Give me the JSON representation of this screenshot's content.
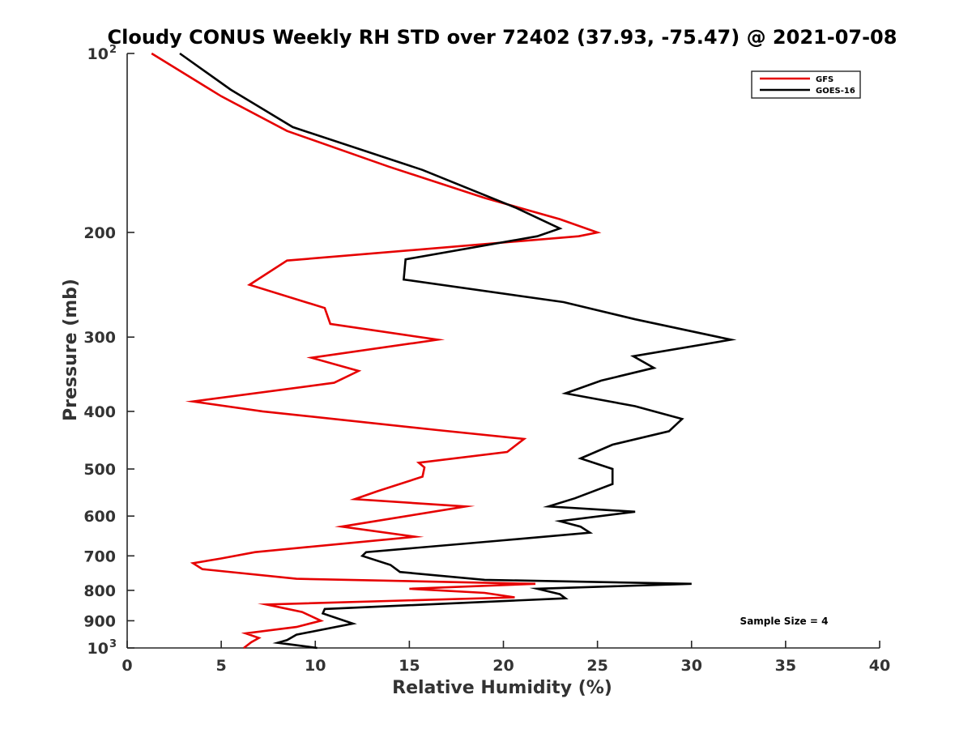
{
  "chart_data": {
    "type": "line",
    "title": "Cloudy CONUS Weekly RH STD over 72402 (37.93, -75.47) @ 2021-07-08",
    "xlabel": "Relative Humidity (%)",
    "ylabel": "Pressure (mb)",
    "xlim": [
      0,
      40
    ],
    "ylim": [
      100,
      1000
    ],
    "y_scale": "log",
    "y_reversed": true,
    "grid": false,
    "legend_position": "top-right",
    "x_ticks": [
      "0",
      "5",
      "10",
      "15",
      "20",
      "25",
      "30",
      "35",
      "40"
    ],
    "x_tick_values": [
      0,
      5,
      10,
      15,
      20,
      25,
      30,
      35,
      40
    ],
    "y_ticks": [
      {
        "value": 100,
        "label": "10",
        "sup": "2"
      },
      {
        "value": 200,
        "label": "200",
        "sup": ""
      },
      {
        "value": 300,
        "label": "300",
        "sup": ""
      },
      {
        "value": 400,
        "label": "400",
        "sup": ""
      },
      {
        "value": 500,
        "label": "500",
        "sup": ""
      },
      {
        "value": 600,
        "label": "600",
        "sup": ""
      },
      {
        "value": 700,
        "label": "700",
        "sup": ""
      },
      {
        "value": 800,
        "label": "800",
        "sup": ""
      },
      {
        "value": 900,
        "label": "900",
        "sup": ""
      },
      {
        "value": 1000,
        "label": "10",
        "sup": "3"
      }
    ],
    "annotation": "Sample Size = 4",
    "series": [
      {
        "name": "GFS",
        "color": "#e60000",
        "points": [
          [
            1.3,
            100
          ],
          [
            5.0,
            118
          ],
          [
            8.5,
            135
          ],
          [
            13.9,
            155
          ],
          [
            19.0,
            175
          ],
          [
            23.0,
            190
          ],
          [
            25.0,
            200
          ],
          [
            24.0,
            203
          ],
          [
            8.5,
            223
          ],
          [
            6.5,
            245
          ],
          [
            10.5,
            268
          ],
          [
            10.8,
            285
          ],
          [
            16.5,
            303
          ],
          [
            9.8,
            325
          ],
          [
            12.3,
            342
          ],
          [
            11.0,
            358
          ],
          [
            3.5,
            385
          ],
          [
            7.2,
            400
          ],
          [
            16.5,
            430
          ],
          [
            21.1,
            445
          ],
          [
            20.2,
            468
          ],
          [
            15.5,
            488
          ],
          [
            15.8,
            497
          ],
          [
            15.7,
            515
          ],
          [
            13.3,
            545
          ],
          [
            12.1,
            562
          ],
          [
            18.0,
            578
          ],
          [
            11.4,
            625
          ],
          [
            15.3,
            650
          ],
          [
            6.8,
            690
          ],
          [
            5.0,
            707
          ],
          [
            3.5,
            720
          ],
          [
            4.0,
            737
          ],
          [
            9.0,
            765
          ],
          [
            21.7,
            780
          ],
          [
            15.0,
            795
          ],
          [
            19.0,
            808
          ],
          [
            20.6,
            822
          ],
          [
            7.4,
            845
          ],
          [
            9.3,
            870
          ],
          [
            10.3,
            900
          ],
          [
            9.0,
            922
          ],
          [
            6.3,
            945
          ],
          [
            7.0,
            962
          ],
          [
            6.6,
            978
          ],
          [
            6.2,
            1000
          ]
        ]
      },
      {
        "name": "GOES-16",
        "color": "#000000",
        "points": [
          [
            2.8,
            100
          ],
          [
            5.5,
            115
          ],
          [
            8.8,
            133
          ],
          [
            15.7,
            157
          ],
          [
            20.7,
            182
          ],
          [
            23.0,
            197
          ],
          [
            21.8,
            203
          ],
          [
            14.8,
            222
          ],
          [
            14.7,
            240
          ],
          [
            23.2,
            262
          ],
          [
            27.0,
            280
          ],
          [
            32.1,
            303
          ],
          [
            26.9,
            323
          ],
          [
            28.0,
            338
          ],
          [
            25.2,
            355
          ],
          [
            23.3,
            373
          ],
          [
            27.0,
            392
          ],
          [
            29.5,
            412
          ],
          [
            28.8,
            432
          ],
          [
            25.8,
            455
          ],
          [
            24.1,
            480
          ],
          [
            25.8,
            500
          ],
          [
            25.8,
            530
          ],
          [
            23.8,
            560
          ],
          [
            22.4,
            578
          ],
          [
            27.0,
            590
          ],
          [
            23.0,
            612
          ],
          [
            24.1,
            625
          ],
          [
            24.6,
            640
          ],
          [
            19.8,
            660
          ],
          [
            12.7,
            690
          ],
          [
            12.5,
            700
          ],
          [
            14.0,
            725
          ],
          [
            14.5,
            745
          ],
          [
            19.0,
            768
          ],
          [
            30.0,
            780
          ],
          [
            21.8,
            795
          ],
          [
            23.0,
            812
          ],
          [
            23.3,
            825
          ],
          [
            10.5,
            860
          ],
          [
            10.4,
            875
          ],
          [
            12.0,
            910
          ],
          [
            9.0,
            950
          ],
          [
            8.5,
            970
          ],
          [
            8.0,
            980
          ],
          [
            10.1,
            1000
          ]
        ]
      }
    ]
  }
}
